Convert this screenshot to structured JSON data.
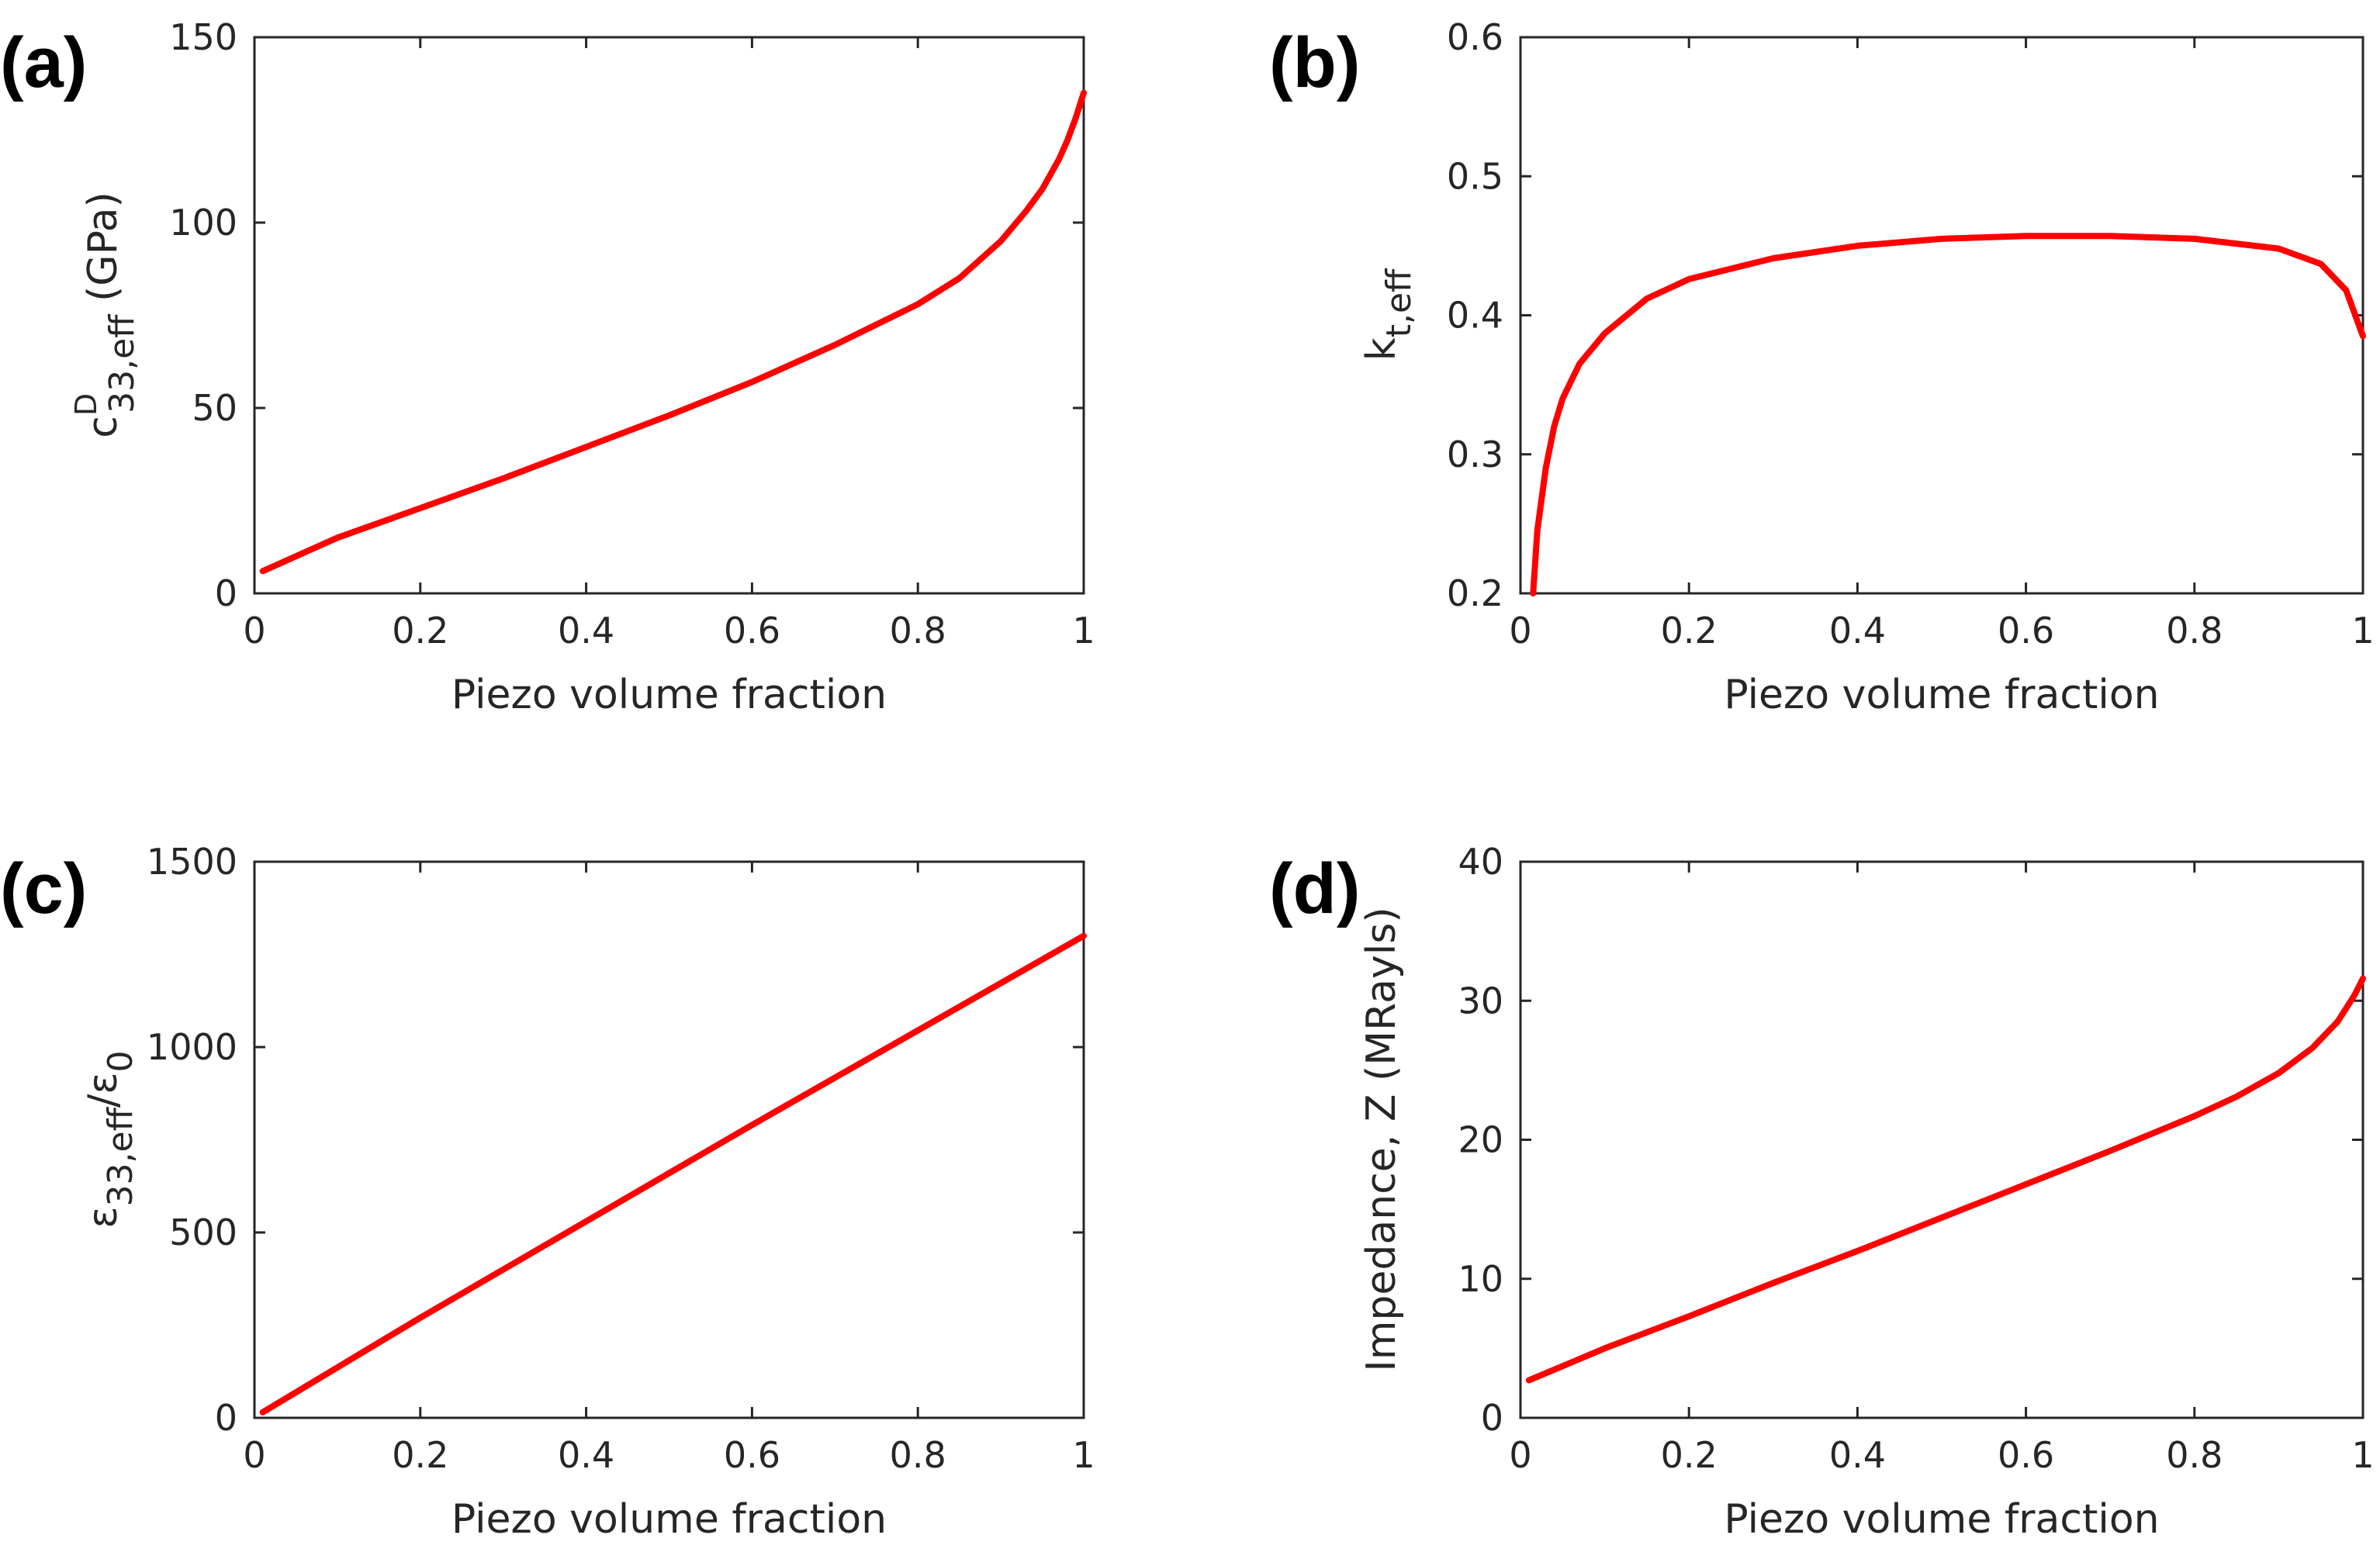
{
  "chart_data": [
    {
      "type": "line",
      "panel_label": "(a)",
      "xlabel": "Piezo volume fraction",
      "ylabel": {
        "base": "c",
        "sup": "D",
        "sub": "33,eff",
        "unit": " (GPa)"
      },
      "xlim": [
        0,
        1
      ],
      "ylim": [
        0,
        150
      ],
      "xticks": [
        "0",
        "0.2",
        "0.4",
        "0.6",
        "0.8",
        "1"
      ],
      "yticks": [
        "0",
        "50",
        "100",
        "150"
      ],
      "series": [
        {
          "name": "c33_eff",
          "color": "#ff0000",
          "x": [
            0.01,
            0.1,
            0.2,
            0.3,
            0.4,
            0.5,
            0.6,
            0.7,
            0.8,
            0.85,
            0.9,
            0.93,
            0.95,
            0.97,
            0.98,
            0.99,
            1.0
          ],
          "y": [
            6,
            15,
            23,
            31,
            39.5,
            48,
            57,
            67,
            78,
            85,
            95,
            103,
            109,
            117,
            122,
            128,
            135
          ]
        }
      ]
    },
    {
      "type": "line",
      "panel_label": "(b)",
      "xlabel": "Piezo volume fraction",
      "ylabel": {
        "base": "k",
        "sup": "",
        "sub": "t,eff",
        "unit": ""
      },
      "xlim": [
        0,
        1
      ],
      "ylim": [
        0.2,
        0.6
      ],
      "xticks": [
        "0",
        "0.2",
        "0.4",
        "0.6",
        "0.8",
        "1"
      ],
      "yticks": [
        "0.2",
        "0.3",
        "0.4",
        "0.5",
        "0.6"
      ],
      "series": [
        {
          "name": "kt_eff",
          "color": "#ff0000",
          "x": [
            0.015,
            0.02,
            0.03,
            0.04,
            0.05,
            0.07,
            0.1,
            0.15,
            0.2,
            0.3,
            0.4,
            0.5,
            0.6,
            0.7,
            0.8,
            0.9,
            0.95,
            0.98,
            1.0
          ],
          "y": [
            0.2,
            0.245,
            0.29,
            0.32,
            0.34,
            0.365,
            0.387,
            0.412,
            0.426,
            0.441,
            0.45,
            0.455,
            0.457,
            0.457,
            0.455,
            0.448,
            0.437,
            0.418,
            0.385
          ]
        }
      ]
    },
    {
      "type": "line",
      "panel_label": "(c)",
      "xlabel": "Piezo volume fraction",
      "ylabel": {
        "base": "ε",
        "sup": "",
        "sub": "33,eff",
        "unit": "",
        "tail": "/ε",
        "tail_sub": "0"
      },
      "xlim": [
        0,
        1
      ],
      "ylim": [
        0,
        1500
      ],
      "xticks": [
        "0",
        "0.2",
        "0.4",
        "0.6",
        "0.8",
        "1"
      ],
      "yticks": [
        "0",
        "500",
        "1000",
        "1500"
      ],
      "series": [
        {
          "name": "eps33_eff_over_eps0",
          "color": "#ff0000",
          "x": [
            0.01,
            0.2,
            0.4,
            0.6,
            0.8,
            1.0
          ],
          "y": [
            15,
            270,
            530,
            790,
            1045,
            1300
          ]
        }
      ]
    },
    {
      "type": "line",
      "panel_label": "(d)",
      "xlabel": "Piezo volume fraction",
      "ylabel": {
        "base": "Impedance, Z (MRayls)",
        "sup": "",
        "sub": "",
        "unit": ""
      },
      "xlim": [
        0,
        1
      ],
      "ylim": [
        0,
        40
      ],
      "xticks": [
        "0",
        "0.2",
        "0.4",
        "0.6",
        "0.8",
        "1"
      ],
      "yticks": [
        "0",
        "10",
        "20",
        "30",
        "40"
      ],
      "series": [
        {
          "name": "impedance_Z",
          "color": "#ff0000",
          "x": [
            0.01,
            0.1,
            0.2,
            0.3,
            0.4,
            0.5,
            0.6,
            0.7,
            0.8,
            0.85,
            0.9,
            0.94,
            0.97,
            0.99,
            1.0
          ],
          "y": [
            2.7,
            5,
            7.3,
            9.7,
            12,
            14.4,
            16.8,
            19.2,
            21.7,
            23.1,
            24.8,
            26.6,
            28.5,
            30.4,
            31.6
          ]
        }
      ]
    }
  ]
}
